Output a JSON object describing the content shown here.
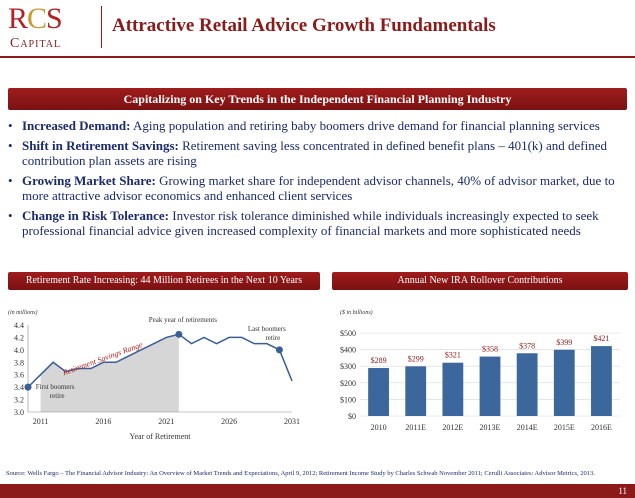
{
  "header": {
    "logo_main": "RCS",
    "logo_sub": "Capital",
    "title": "Attractive Retail Advice Growth Fundamentals"
  },
  "banner": "Capitalizing on Key Trends in the Independent Financial Planning Industry",
  "bullets": [
    {
      "label": "Increased Demand:",
      "text": " Aging population and retiring baby boomers drive demand for financial planning services"
    },
    {
      "label": "Shift in Retirement Savings:",
      "text": " Retirement saving less concentrated in defined benefit plans – 401(k) and defined contribution plan assets are rising"
    },
    {
      "label": "Growing Market Share:",
      "text": " Growing market share for independent advisor channels, 40% of advisor market, due to more attractive advisor economics and enhanced client services"
    },
    {
      "label": "Change in Risk Tolerance:",
      "text": " Investor risk tolerance diminished while individuals increasingly expected to seek professional financial advice given increased complexity of financial markets and more sophisticated needs"
    }
  ],
  "panels": {
    "left_title": "Retirement Rate Increasing: 44 Million Retirees in the Next 10 Years",
    "right_title": "Annual New IRA Rollover Contributions"
  },
  "chart_data": [
    {
      "type": "line",
      "unit_note": "(in millions)",
      "xlabel": "Year of Retirement",
      "ylabel": "",
      "ylim": [
        3.0,
        4.4
      ],
      "yticks": [
        "4.4",
        "4.2",
        "4.0",
        "3.8",
        "3.6",
        "3.4",
        "3.2",
        "3.0"
      ],
      "xticks": [
        "2011",
        "2016",
        "2021",
        "2026",
        "2031"
      ],
      "xlim": [
        2010,
        2031
      ],
      "x": [
        2010,
        2011,
        2012,
        2013,
        2014,
        2015,
        2016,
        2017,
        2018,
        2019,
        2020,
        2021,
        2022,
        2023,
        2024,
        2025,
        2026,
        2027,
        2028,
        2029,
        2030,
        2031
      ],
      "y": [
        3.4,
        3.6,
        3.8,
        3.65,
        3.7,
        3.7,
        3.8,
        3.8,
        3.9,
        4.0,
        4.1,
        4.2,
        4.25,
        4.1,
        4.2,
        4.1,
        4.2,
        4.2,
        4.1,
        4.1,
        4.0,
        3.5
      ],
      "band_label": "Retirement Savings Range",
      "annotations": [
        {
          "text": "Peak year of retirements",
          "x": 2022
        },
        {
          "text": "Last boomers retire",
          "x": 2030
        },
        {
          "text": "First boomers retire",
          "x": 2010
        }
      ],
      "colors": {
        "line": "#3a5f95",
        "band": "#d6d6d6",
        "marker": "#3a5f95"
      }
    },
    {
      "type": "bar",
      "unit_note": "($ in billions)",
      "categories": [
        "2010",
        "2011E",
        "2012E",
        "2013E",
        "2014E",
        "2015E",
        "2016E"
      ],
      "values": [
        289,
        299,
        321,
        358,
        378,
        399,
        421
      ],
      "labels": [
        "$289",
        "$299",
        "$321",
        "$358",
        "$378",
        "$399",
        "$421"
      ],
      "ylim": [
        0,
        500
      ],
      "yticks": [
        "$500",
        "$400",
        "$300",
        "$200",
        "$100",
        "$0"
      ],
      "grid": true,
      "colors": {
        "bar": "#3b679c"
      }
    }
  ],
  "source": "Source: Wells Fargo – The Financial Advisor Industry: An Overview of Market Trends and Expectations, April 9, 2012; Retirement Income Study by Charles Schwab November 2011; Cerulli Associates: Advisor Metrics, 2013.",
  "page_number": "11"
}
